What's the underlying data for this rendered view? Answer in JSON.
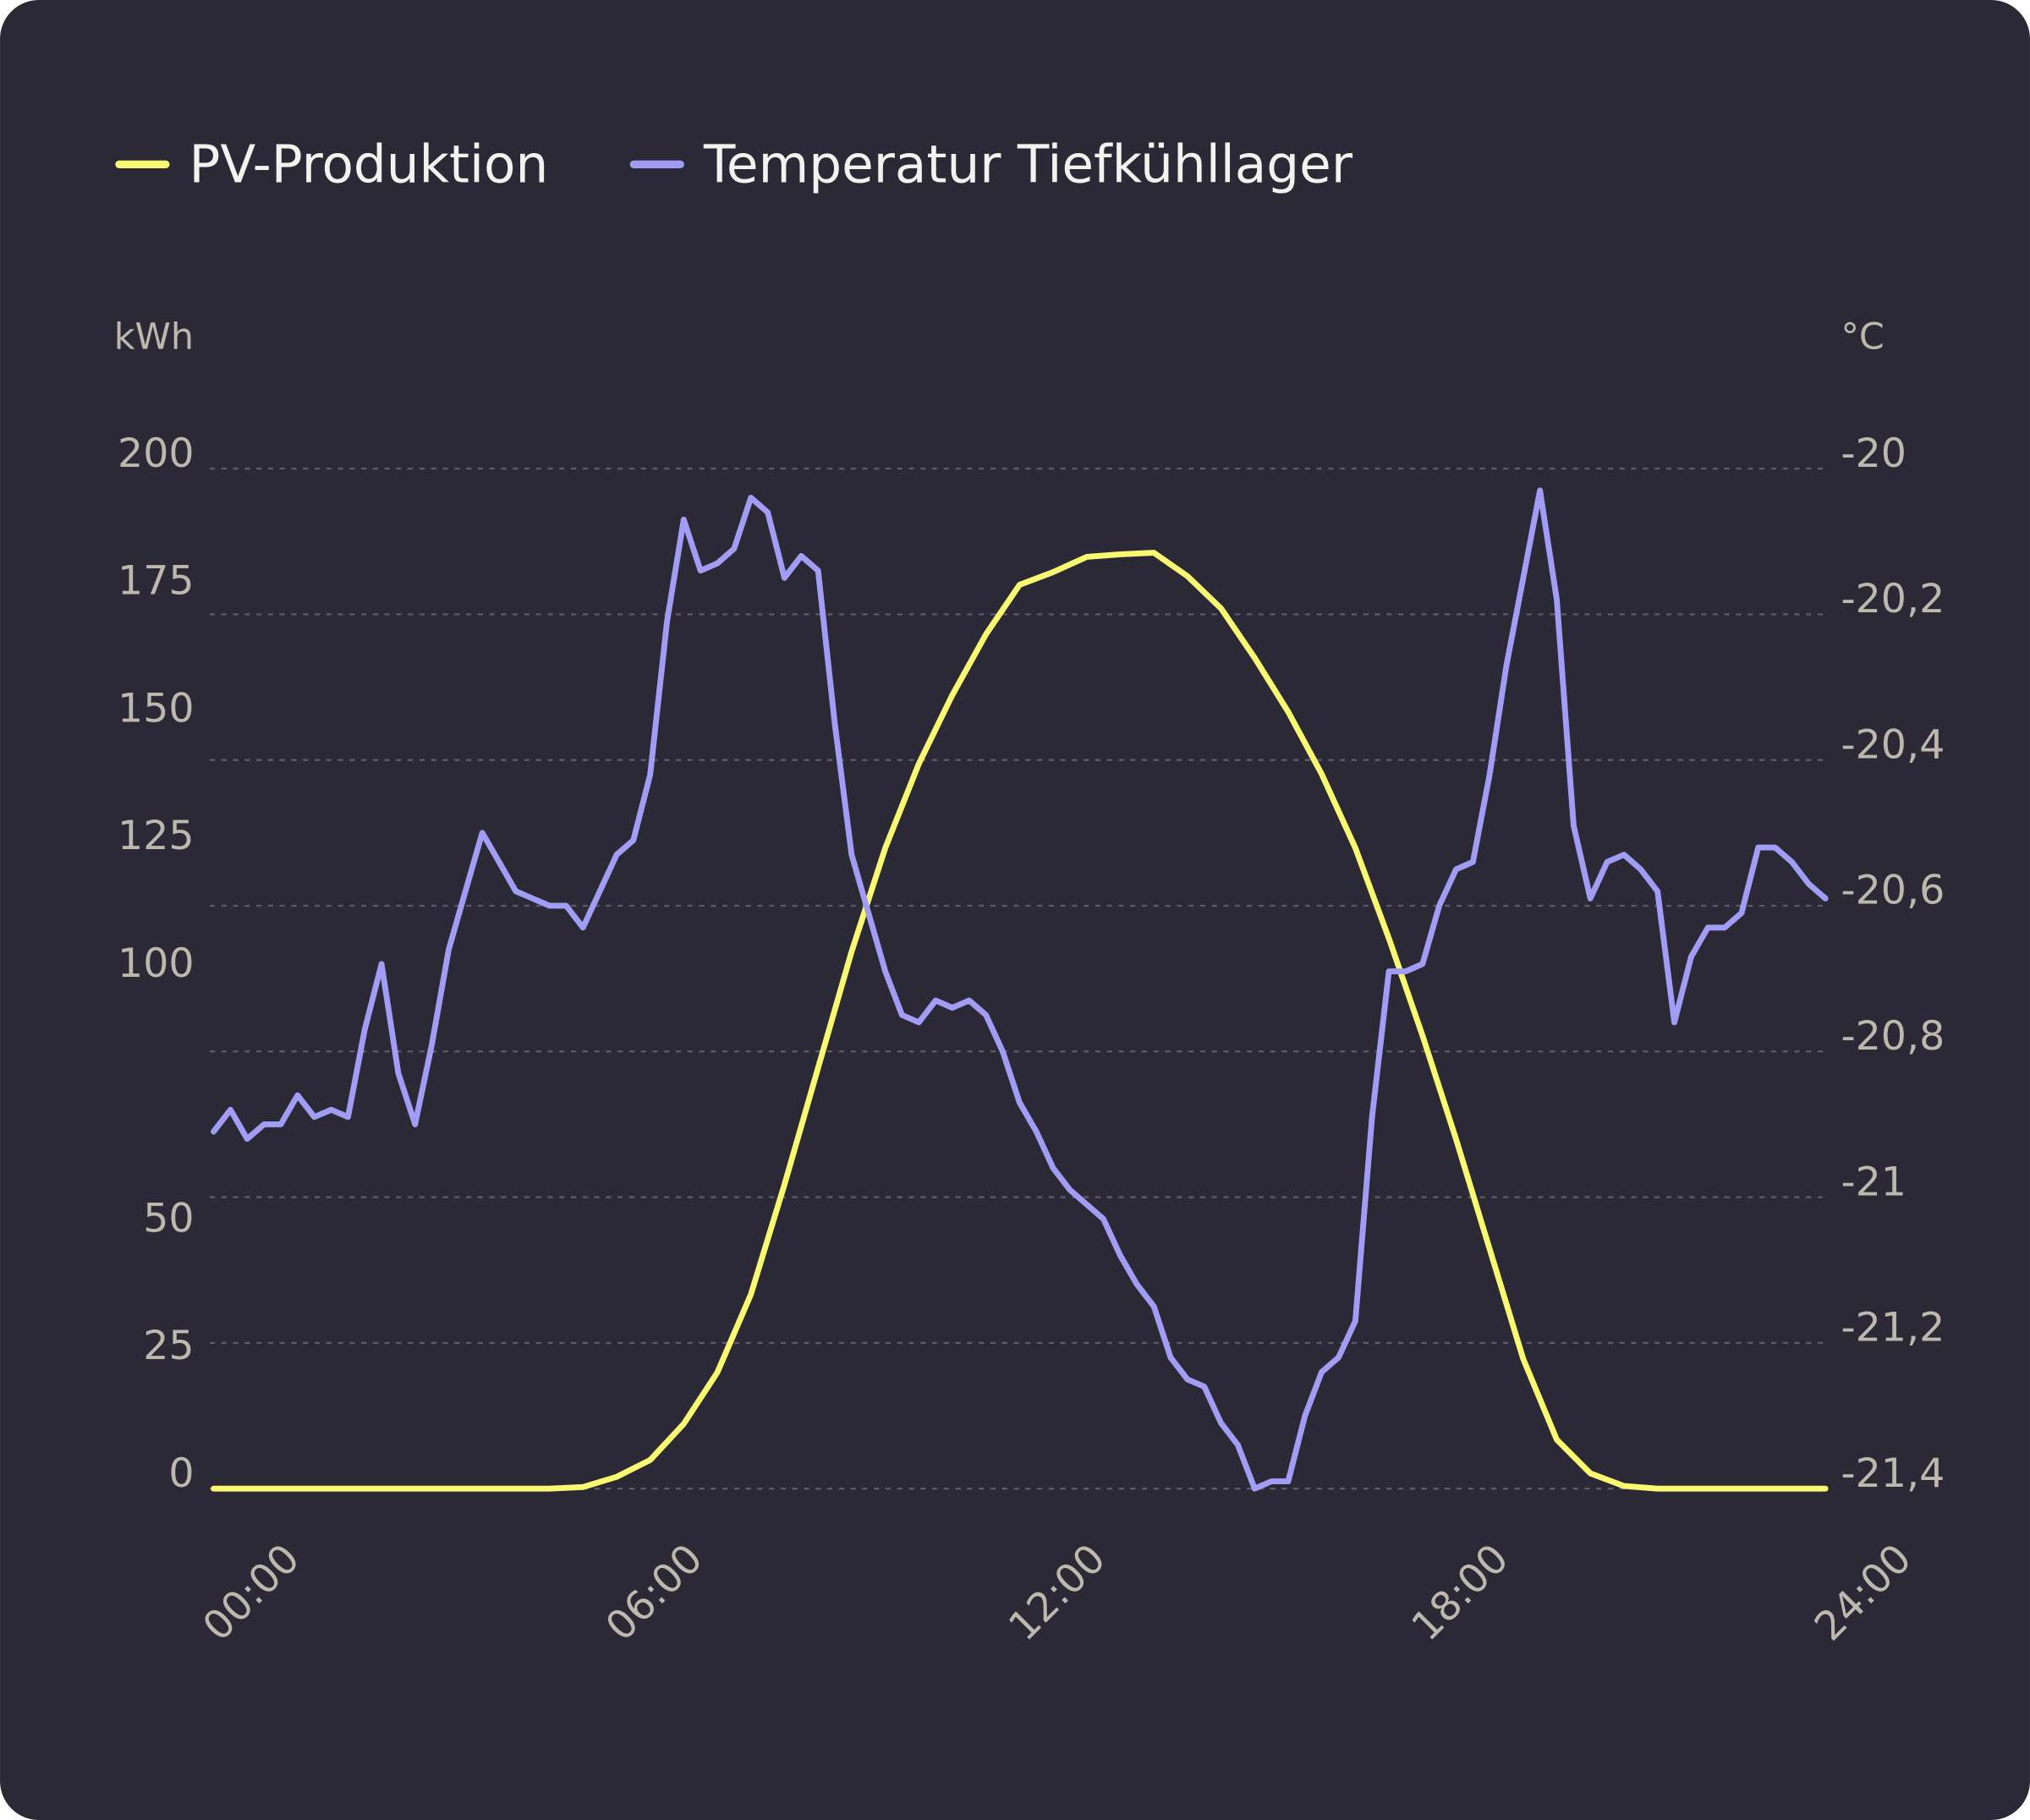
{
  "chart_data": {
    "type": "line",
    "y_label": "kWh",
    "y2_label": "°C",
    "ylim": [
      0,
      200
    ],
    "yticks": [
      0,
      25,
      50,
      100,
      125,
      150,
      175,
      200
    ],
    "y2lim": [
      -21.4,
      -20
    ],
    "y2ticks": [
      {
        "value": -21.4,
        "label": "-21,4"
      },
      {
        "value": -21.2,
        "label": "-21,2"
      },
      -21,
      {
        "value": -20.8,
        "label": "-20,8"
      },
      {
        "value": -20.6,
        "label": "-20,6"
      },
      {
        "value": -20.4,
        "label": "-20,4"
      },
      {
        "value": -20.2,
        "label": "-20,2"
      },
      -20
    ],
    "xlim": [
      0,
      24
    ],
    "xticks": [
      {
        "value": 0,
        "label": "00:00"
      },
      {
        "value": 6,
        "label": "06:00"
      },
      {
        "value": 12,
        "label": "12:00"
      },
      {
        "value": 18,
        "label": "18:00"
      },
      {
        "value": 24,
        "label": "24:00"
      }
    ],
    "grid": true,
    "legend": "top-left",
    "series": [
      {
        "name": "PV-Produktion",
        "color": "#f9f871",
        "x": [
          0,
          0.5,
          1,
          1.5,
          2,
          2.5,
          3,
          3.5,
          4,
          4.5,
          5,
          5.5,
          6,
          6.5,
          7,
          7.5,
          8,
          8.5,
          9,
          9.5,
          10,
          10.5,
          11,
          11.5,
          12,
          12.5,
          13,
          13.5,
          14,
          14.5,
          15,
          15.5,
          16,
          16.5,
          17,
          17.5,
          18,
          18.5,
          19,
          19.5,
          20,
          20.5,
          21,
          21.5,
          22,
          22.5,
          23,
          23.5,
          24
        ],
        "values": [
          0,
          0,
          0,
          0,
          0,
          0,
          0,
          0,
          0,
          0,
          0,
          0.3,
          2.3,
          5.6,
          12.7,
          22.8,
          38.1,
          59.6,
          82.5,
          105.3,
          125.6,
          142.1,
          155.6,
          167.5,
          177.2,
          179.7,
          182.7,
          183.2,
          183.5,
          178.9,
          172.6,
          162.9,
          152.3,
          140.1,
          125.6,
          107.9,
          88.8,
          68.5,
          47.0,
          25.4,
          9.6,
          3.0,
          0.5,
          0,
          0,
          0,
          0,
          0,
          0
        ]
      },
      {
        "name": "Temperatur Tiefkühllager",
        "color": "#a29df4",
        "axis": "y2",
        "x": [
          0,
          0.25,
          0.5,
          0.75,
          1,
          1.25,
          1.5,
          1.75,
          2,
          2.25,
          2.5,
          2.75,
          3,
          3.25,
          3.5,
          3.75,
          4,
          4.25,
          4.5,
          4.75,
          5,
          5.25,
          5.5,
          5.75,
          6,
          6.25,
          6.5,
          6.75,
          7,
          7.25,
          7.5,
          7.75,
          8,
          8.25,
          8.5,
          8.75,
          9,
          9.25,
          9.5,
          9.75,
          10,
          10.25,
          10.5,
          10.75,
          11,
          11.25,
          11.5,
          11.75,
          12,
          12.25,
          12.5,
          12.75,
          13,
          13.25,
          13.5,
          13.75,
          14,
          14.25,
          14.5,
          14.75,
          15,
          15.25,
          15.5,
          15.75,
          16,
          16.25,
          16.5,
          16.75,
          17,
          17.25,
          17.5,
          17.75,
          18,
          18.25,
          18.5,
          18.75,
          19,
          19.25,
          19.5,
          19.75,
          20,
          20.25,
          20.5,
          20.75,
          21,
          21.25,
          21.5,
          21.75,
          22,
          22.25,
          22.5,
          22.75,
          23,
          23.25,
          23.5,
          23.75,
          24
        ],
        "values": [
          -20.91,
          -20.88,
          -20.92,
          -20.9,
          -20.9,
          -20.86,
          -20.89,
          -20.88,
          -20.89,
          -20.77,
          -20.68,
          -20.83,
          -20.9,
          -20.79,
          -20.66,
          -20.58,
          -20.5,
          -20.54,
          -20.58,
          -20.59,
          -20.6,
          -20.6,
          -20.63,
          -20.58,
          -20.53,
          -20.51,
          -20.42,
          -20.21,
          -20.07,
          -20.14,
          -20.13,
          -20.11,
          -20.04,
          -20.06,
          -20.15,
          -20.12,
          -20.14,
          -20.35,
          -20.53,
          -20.61,
          -20.69,
          -20.75,
          -20.76,
          -20.73,
          -20.74,
          -20.73,
          -20.75,
          -20.8,
          -20.87,
          -20.91,
          -20.96,
          -20.99,
          -21.01,
          -21.03,
          -21.08,
          -21.12,
          -21.15,
          -21.22,
          -21.25,
          -21.26,
          -21.31,
          -21.34,
          -21.4,
          -21.39,
          -21.39,
          -21.3,
          -21.24,
          -21.22,
          -21.17,
          -20.89,
          -20.69,
          -20.69,
          -20.68,
          -20.6,
          -20.55,
          -20.54,
          -20.42,
          -20.27,
          -20.15,
          -20.03,
          -20.18,
          -20.49,
          -20.59,
          -20.54,
          -20.53,
          -20.55,
          -20.58,
          -20.76,
          -20.67,
          -20.63,
          -20.63,
          -20.61,
          -20.52,
          -20.52,
          -20.54,
          -20.57,
          -20.59
        ]
      }
    ]
  }
}
